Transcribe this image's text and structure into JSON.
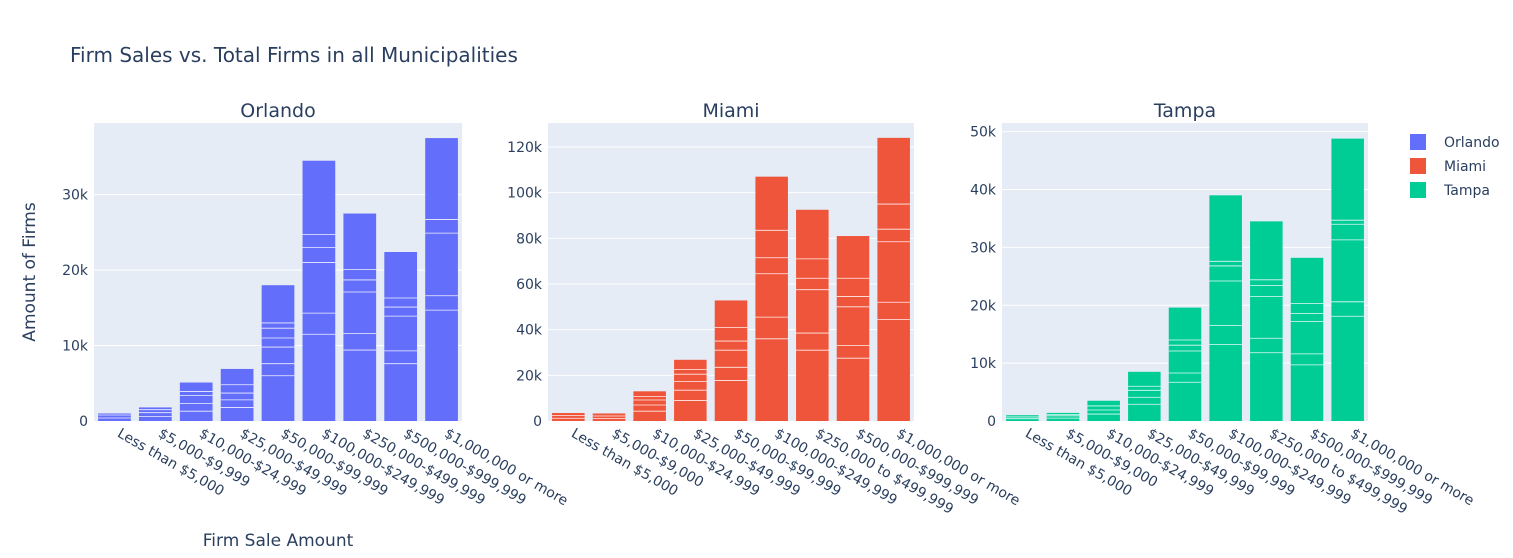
{
  "title": "Firm Sales vs. Total Firms in all Municipalities",
  "xlabel": "Firm Sale Amount",
  "ylabel": "Amount of Firms",
  "legend": [
    {
      "name": "Orlando",
      "color": "#636efa"
    },
    {
      "name": "Miami",
      "color": "#ef553b"
    },
    {
      "name": "Tampa",
      "color": "#00cc96"
    }
  ],
  "chart_data": [
    {
      "type": "bar",
      "title": "Orlando",
      "color": "#636efa",
      "categories": [
        "Less than $5,000",
        "$5,000-$9,999",
        "$10,000-$24,999",
        "$25,000-$49,999",
        "$50,000-$99,999",
        "$100,000-$249,999",
        "$250,000-$499,999",
        "$500,000-$999,999",
        "$1,000,000 or more"
      ],
      "values": [
        1000,
        1800,
        5100,
        6900,
        18000,
        34500,
        27500,
        22400,
        37500
      ],
      "stack_lines": [
        [
          400,
          800
        ],
        [
          600,
          1100,
          1500
        ],
        [
          1300,
          2300,
          3400,
          3900
        ],
        [
          1800,
          2800,
          3700,
          4800
        ],
        [
          6000,
          7600,
          9800,
          11000,
          12300,
          13000
        ],
        [
          11500,
          14300,
          21000,
          23000,
          24700
        ],
        [
          9400,
          11600,
          17100,
          18700,
          20100
        ],
        [
          7600,
          9300,
          13900,
          15100,
          16300
        ],
        [
          14700,
          16600,
          24900,
          26700
        ]
      ],
      "yticks": [
        0,
        10000,
        20000,
        30000
      ],
      "ytick_labels": [
        "0",
        "10k",
        "20k",
        "30k"
      ],
      "ylim": [
        0,
        39500
      ]
    },
    {
      "type": "bar",
      "title": "Miami",
      "color": "#ef553b",
      "categories": [
        "Less than $5,000",
        "$5,000-$9,000",
        "$10,000-$24,999",
        "$25,000-$49,999",
        "$50,000-$99,999",
        "$100,000-$249,999",
        "$250,000 to $499,999",
        "$500,000-$999,999",
        "$1,000,000 or more"
      ],
      "values": [
        3500,
        3300,
        13000,
        26800,
        52800,
        107000,
        92500,
        81000,
        124000
      ],
      "stack_lines": [
        [
          1200,
          2400
        ],
        [
          1100,
          2200
        ],
        [
          4300,
          7000,
          9200,
          10800
        ],
        [
          9000,
          13500,
          17300,
          20500,
          22500
        ],
        [
          17700,
          23500,
          31000,
          35000,
          41000
        ],
        [
          36000,
          45500,
          64500,
          71500,
          83500
        ],
        [
          31000,
          38500,
          57500,
          62500,
          71000
        ],
        [
          27500,
          33000,
          50000,
          54500,
          62500
        ],
        [
          44500,
          52000,
          78500,
          84000,
          95000
        ]
      ],
      "yticks": [
        0,
        20000,
        40000,
        60000,
        80000,
        100000,
        120000
      ],
      "ytick_labels": [
        "0",
        "20k",
        "40k",
        "60k",
        "80k",
        "100k",
        "120k"
      ],
      "ylim": [
        0,
        130500
      ]
    },
    {
      "type": "bar",
      "title": "Tampa",
      "color": "#00cc96",
      "categories": [
        "Less than $5,000",
        "$5,000-$9,000",
        "$10,000-$24,999",
        "$25,000-$49,999",
        "$50,000-$99,999",
        "$100,000-$249,999",
        "$250,000 to $499,999",
        "$500,000-$999,999",
        "$1,000,000 or more"
      ],
      "values": [
        1000,
        1400,
        3500,
        8500,
        19600,
        39000,
        34500,
        28200,
        48800
      ],
      "stack_lines": [
        [
          400,
          700
        ],
        [
          500,
          900,
          1100
        ],
        [
          1200,
          1900,
          2600
        ],
        [
          2900,
          4100,
          5300,
          6000
        ],
        [
          6700,
          8300,
          12100,
          13100,
          14000
        ],
        [
          13200,
          16500,
          24200,
          26800,
          27600
        ],
        [
          11800,
          14300,
          21500,
          23400,
          24400
        ],
        [
          9700,
          11600,
          17200,
          18600,
          20300
        ],
        [
          18100,
          20600,
          31300,
          34000,
          34700
        ]
      ],
      "yticks": [
        0,
        10000,
        20000,
        30000,
        40000,
        50000
      ],
      "ytick_labels": [
        "0",
        "10k",
        "20k",
        "30k",
        "40k",
        "50k"
      ],
      "ylim": [
        0,
        51500
      ]
    }
  ]
}
